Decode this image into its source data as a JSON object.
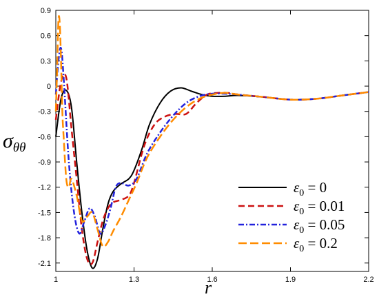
{
  "chart_data": {
    "type": "line",
    "xlabel": "r",
    "ylabel": "σ",
    "ylabel_sub": "θθ",
    "xlim": [
      1.0,
      2.2
    ],
    "ylim": [
      -2.2,
      0.9
    ],
    "xticks": [
      1,
      1.3,
      1.6,
      1.9,
      2.2
    ],
    "xtick_labels": [
      "1",
      "1.3",
      "1.6",
      "1.9",
      "2.2"
    ],
    "yticks": [
      0.9,
      0.6,
      0.3,
      0,
      -0.3,
      -0.6,
      -0.9,
      -1.2,
      -1.5,
      -1.8,
      -2.1
    ],
    "ytick_labels": [
      "0.9",
      "0.6",
      "0.3",
      "0",
      "-0.3",
      "-0.6",
      "-0.9",
      "-1.2",
      "-1.5",
      "-1.8",
      "-2.1"
    ],
    "legend_position": "bottom-right",
    "series": [
      {
        "name_prefix": "ε",
        "name_sub": "0",
        "name_value": " = 0",
        "color": "#000000",
        "dash": "",
        "x": [
          1.0,
          1.02,
          1.04,
          1.06,
          1.08,
          1.1,
          1.12,
          1.14,
          1.16,
          1.18,
          1.2,
          1.22,
          1.25,
          1.28,
          1.3,
          1.33,
          1.36,
          1.4,
          1.44,
          1.48,
          1.52,
          1.56,
          1.6,
          1.65,
          1.7,
          1.8,
          1.9,
          2.0,
          2.1,
          2.2
        ],
        "y": [
          -0.6,
          -0.15,
          -0.05,
          -0.25,
          -0.9,
          -1.5,
          -1.95,
          -2.16,
          -2.05,
          -1.7,
          -1.4,
          -1.25,
          -1.16,
          -1.1,
          -1.0,
          -0.75,
          -0.45,
          -0.2,
          -0.06,
          -0.02,
          -0.06,
          -0.1,
          -0.12,
          -0.12,
          -0.11,
          -0.13,
          -0.16,
          -0.15,
          -0.11,
          -0.07
        ]
      },
      {
        "name_prefix": "ε",
        "name_sub": "0",
        "name_value": " = 0.01",
        "color": "#cc1111",
        "dash": "9,5",
        "x": [
          1.0,
          1.02,
          1.04,
          1.06,
          1.08,
          1.1,
          1.12,
          1.14,
          1.16,
          1.18,
          1.2,
          1.22,
          1.25,
          1.28,
          1.3,
          1.34,
          1.38,
          1.42,
          1.46,
          1.5,
          1.54,
          1.58,
          1.62,
          1.66,
          1.7,
          1.8,
          1.9,
          2.0,
          2.1,
          2.2
        ],
        "y": [
          -0.4,
          0.05,
          0.1,
          -0.5,
          -1.1,
          -1.7,
          -2.05,
          -2.1,
          -1.85,
          -1.6,
          -1.45,
          -1.38,
          -1.35,
          -1.3,
          -1.15,
          -0.7,
          -0.45,
          -0.36,
          -0.33,
          -0.33,
          -0.2,
          -0.1,
          -0.08,
          -0.08,
          -0.1,
          -0.13,
          -0.16,
          -0.15,
          -0.11,
          -0.07
        ]
      },
      {
        "name_prefix": "ε",
        "name_sub": "0",
        "name_value": " = 0.05",
        "color": "#2222dd",
        "dash": "8,3,2,3",
        "x": [
          1.0,
          1.01,
          1.02,
          1.03,
          1.05,
          1.07,
          1.09,
          1.11,
          1.13,
          1.15,
          1.17,
          1.19,
          1.21,
          1.23,
          1.25,
          1.28,
          1.31,
          1.35,
          1.4,
          1.45,
          1.5,
          1.55,
          1.6,
          1.65,
          1.7,
          1.8,
          1.9,
          2.0,
          2.1,
          2.2
        ],
        "y": [
          -0.1,
          0.3,
          0.45,
          0.1,
          -0.9,
          -1.5,
          -1.75,
          -1.6,
          -1.45,
          -1.55,
          -1.75,
          -1.65,
          -1.45,
          -1.2,
          -1.15,
          -1.18,
          -1.1,
          -0.8,
          -0.55,
          -0.35,
          -0.2,
          -0.12,
          -0.09,
          -0.09,
          -0.1,
          -0.13,
          -0.16,
          -0.15,
          -0.11,
          -0.07
        ]
      },
      {
        "name_prefix": "ε",
        "name_sub": "0",
        "name_value": " = 0.2",
        "color": "#ff8c00",
        "dash": "12,5",
        "x": [
          1.0,
          1.005,
          1.01,
          1.015,
          1.02,
          1.025,
          1.03,
          1.04,
          1.05,
          1.06,
          1.08,
          1.1,
          1.12,
          1.14,
          1.16,
          1.18,
          1.2,
          1.22,
          1.25,
          1.28,
          1.31,
          1.35,
          1.4,
          1.45,
          1.5,
          1.55,
          1.6,
          1.65,
          1.7,
          1.8,
          1.9,
          2.0,
          2.1,
          2.2
        ],
        "y": [
          -0.3,
          0.2,
          0.78,
          0.75,
          0.3,
          -0.3,
          -0.6,
          -1.1,
          -1.2,
          -1.1,
          -1.3,
          -1.6,
          -1.55,
          -1.5,
          -1.7,
          -1.9,
          -1.85,
          -1.72,
          -1.55,
          -1.35,
          -1.15,
          -0.85,
          -0.6,
          -0.4,
          -0.25,
          -0.15,
          -0.1,
          -0.08,
          -0.1,
          -0.13,
          -0.16,
          -0.15,
          -0.11,
          -0.07
        ]
      }
    ]
  }
}
